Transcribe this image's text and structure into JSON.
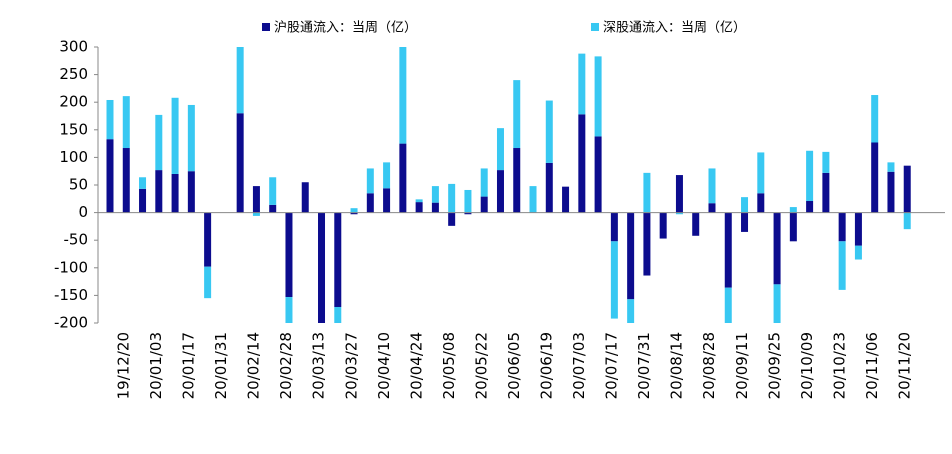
{
  "chart_data": {
    "type": "bar",
    "stacked": true,
    "categories": [
      "19/12/20",
      null,
      "20/01/03",
      null,
      "20/01/17",
      null,
      "20/01/31",
      null,
      "20/02/14",
      null,
      "20/02/28",
      null,
      "20/03/13",
      null,
      "20/03/27",
      null,
      "20/04/10",
      null,
      "20/04/24",
      null,
      "20/05/08",
      null,
      "20/05/22",
      null,
      "20/06/05",
      null,
      "20/06/19",
      null,
      "20/07/03",
      null,
      "20/07/17",
      null,
      "20/07/31",
      null,
      "20/08/14",
      null,
      "20/08/28",
      null,
      "20/09/11",
      null,
      "20/09/25",
      null,
      "20/10/09",
      null,
      "20/10/23",
      null,
      "20/11/06",
      null,
      "20/11/20",
      null
    ],
    "series": [
      {
        "name": "沪股通流入：当周（亿）",
        "color": "#0c0c8e",
        "values": [
          133,
          117,
          43,
          77,
          70,
          75,
          -98,
          null,
          180,
          48,
          14,
          -153,
          55,
          -200,
          -171,
          -3,
          35,
          44,
          125,
          19,
          18,
          -24,
          -3,
          29,
          77,
          117,
          0,
          90,
          47,
          178,
          138,
          -52,
          -157,
          -114,
          -47,
          68,
          -42,
          17,
          -136,
          -35,
          35,
          -130,
          -52,
          21,
          72,
          -52,
          -60,
          127,
          74,
          85
        ]
      },
      {
        "name": "深股通流入：当周（亿）",
        "color": "#38c8f2",
        "values": [
          71,
          94,
          21,
          100,
          138,
          120,
          -57,
          null,
          120,
          -6,
          50,
          -47,
          0,
          0,
          -29,
          8,
          45,
          47,
          175,
          5,
          30,
          52,
          41,
          51,
          76,
          123,
          48,
          113,
          0,
          110,
          145,
          -140,
          -43,
          72,
          0,
          -3,
          0,
          63,
          -64,
          28,
          74,
          -70,
          10,
          91,
          38,
          -88,
          -25,
          86,
          17,
          -30
        ]
      }
    ],
    "ylim": [
      -200,
      300
    ],
    "yticks": [
      -200,
      -150,
      -100,
      -50,
      0,
      50,
      100,
      150,
      200,
      250,
      300
    ]
  }
}
